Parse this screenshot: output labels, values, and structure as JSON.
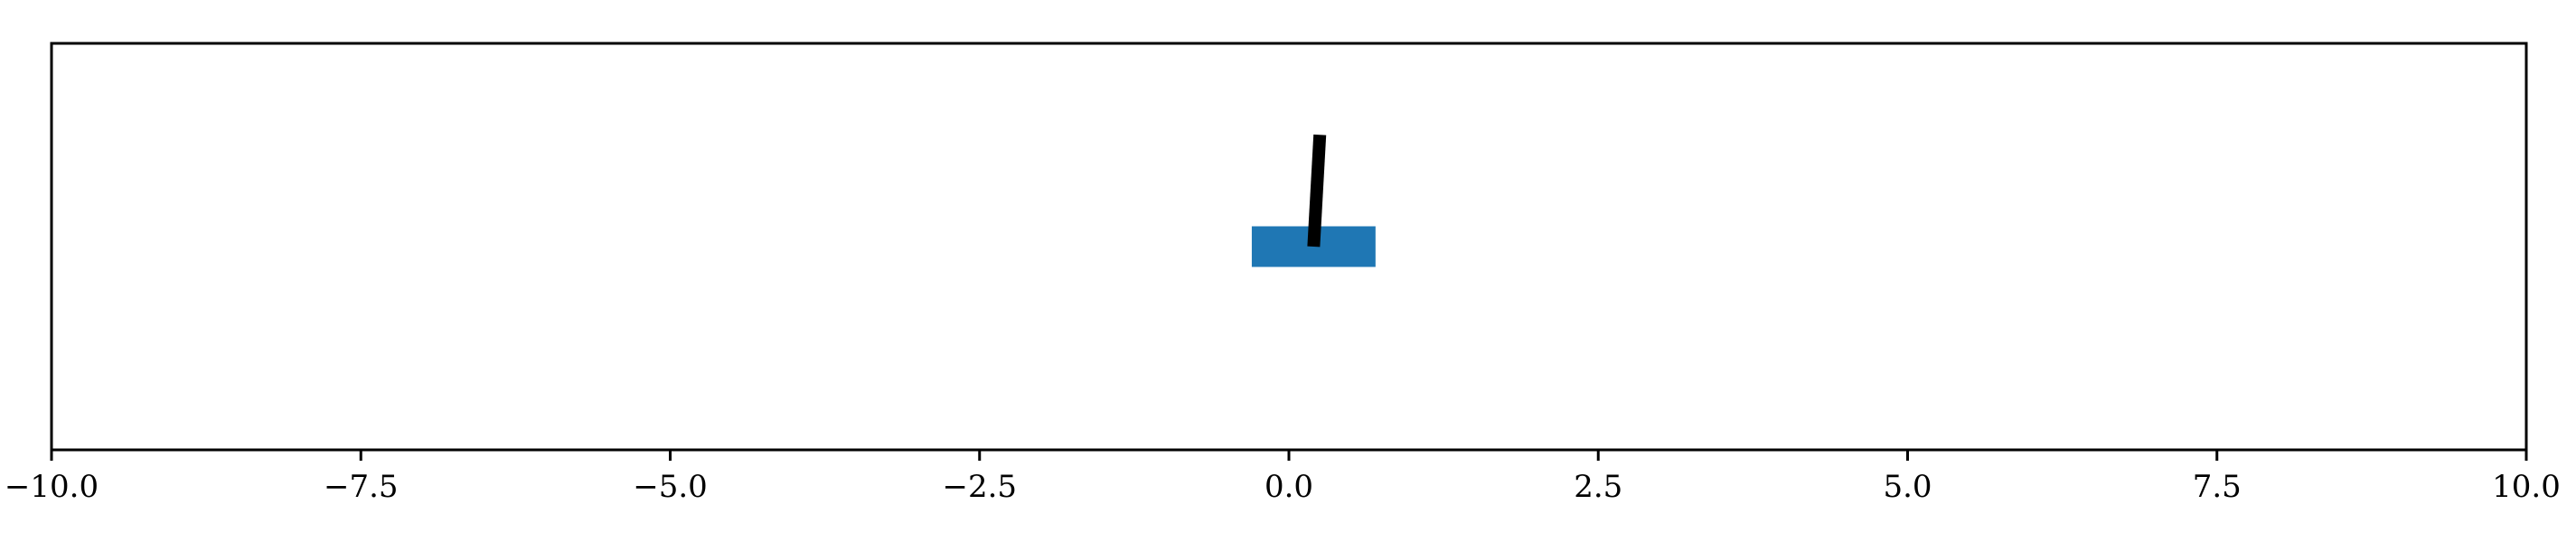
{
  "chart_data": {
    "type": "scatter",
    "title": "",
    "xlabel": "",
    "ylabel": "",
    "xlim": [
      -10.0,
      10.0
    ],
    "ylim": [
      -1.0,
      1.0
    ],
    "grid": false,
    "xticks": [
      -10.0,
      -7.5,
      -5.0,
      -2.5,
      0.0,
      2.5,
      5.0,
      7.5,
      10.0
    ],
    "xtick_labels": [
      "−10.0",
      "−7.5",
      "−5.0",
      "−2.5",
      "0.0",
      "2.5",
      "5.0",
      "7.5",
      "10.0"
    ],
    "cart": {
      "x": 0.2,
      "y": 0.0,
      "width": 1.0,
      "height": 0.2,
      "color": "#1f77b4"
    },
    "pole": {
      "x_base": 0.2,
      "y_base": 0.0,
      "x_tip": 0.25,
      "y_tip": 0.55,
      "color": "#000000"
    }
  }
}
